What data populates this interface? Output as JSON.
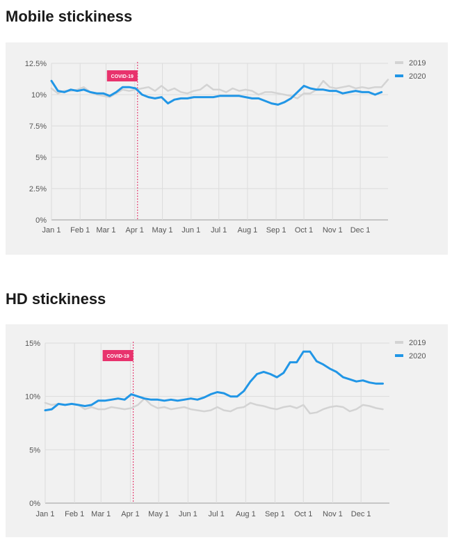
{
  "charts": [
    {
      "section_title": "Mobile stickiness",
      "chart_data": {
        "type": "line",
        "title": "Mobile stickiness",
        "x_tick_labels": [
          "Jan 1",
          "Feb 1",
          "Mar 1",
          "Apr 1",
          "May 1",
          "Jun 1",
          "Jul 1",
          "Aug 1",
          "Sep 1",
          "Oct 1",
          "Nov 1",
          "Dec 1"
        ],
        "y_tick_labels": [
          "0%",
          "2.5%",
          "5%",
          "7.5%",
          "10%",
          "12.5%"
        ],
        "y_ticks": [
          0,
          2.5,
          5,
          7.5,
          10,
          12.5
        ],
        "ylim": [
          0,
          12.5
        ],
        "xlim_weeks": [
          0,
          52
        ],
        "annotation": {
          "label": "COVID-19",
          "week": 13.3
        },
        "legend_position": "top-right",
        "series": [
          {
            "name": "2019",
            "color": "#d3d3d3",
            "values": [
              10.5,
              10.1,
              10.3,
              10.3,
              10.4,
              10.6,
              10.2,
              10.0,
              9.9,
              9.8,
              10.1,
              10.4,
              10.3,
              10.4,
              10.5,
              10.6,
              10.3,
              10.7,
              10.3,
              10.5,
              10.2,
              10.1,
              10.3,
              10.4,
              10.8,
              10.4,
              10.4,
              10.2,
              10.5,
              10.3,
              10.4,
              10.3,
              10.0,
              10.2,
              10.2,
              10.1,
              10.0,
              9.9,
              9.7,
              10.1,
              10.1,
              10.4,
              11.1,
              10.6,
              10.5,
              10.6,
              10.7,
              10.5,
              10.6,
              10.5,
              10.6,
              10.6,
              11.2
            ]
          },
          {
            "name": "2020",
            "color": "#2196e6",
            "values": [
              11.1,
              10.3,
              10.2,
              10.4,
              10.3,
              10.4,
              10.2,
              10.1,
              10.1,
              9.9,
              10.2,
              10.6,
              10.6,
              10.5,
              10.0,
              9.8,
              9.7,
              9.8,
              9.3,
              9.6,
              9.7,
              9.7,
              9.8,
              9.8,
              9.8,
              9.8,
              9.9,
              9.9,
              9.9,
              9.9,
              9.8,
              9.7,
              9.7,
              9.5,
              9.3,
              9.2,
              9.4,
              9.7,
              10.2,
              10.7,
              10.5,
              10.4,
              10.4,
              10.3,
              10.3,
              10.1,
              10.2,
              10.3,
              10.2,
              10.2,
              10.0,
              10.2
            ]
          }
        ]
      }
    },
    {
      "section_title": "HD stickiness",
      "chart_data": {
        "type": "line",
        "title": "HD stickiness",
        "x_tick_labels": [
          "Jan 1",
          "Feb 1",
          "Mar 1",
          "Apr 1",
          "May 1",
          "Jun 1",
          "Jul 1",
          "Aug 1",
          "Sep 1",
          "Oct 1",
          "Nov 1",
          "Dec 1"
        ],
        "y_tick_labels": [
          "0%",
          "5%",
          "10%",
          "15%"
        ],
        "y_ticks": [
          0,
          5,
          10,
          15
        ],
        "ylim": [
          0,
          15
        ],
        "xlim_weeks": [
          0,
          52
        ],
        "annotation": {
          "label": "COVID-19",
          "week": 13.3
        },
        "legend_position": "top-right",
        "series": [
          {
            "name": "2019",
            "color": "#d3d3d3",
            "values": [
              9.4,
              9.2,
              9.3,
              9.2,
              9.3,
              9.2,
              8.8,
              9.0,
              8.8,
              8.8,
              9.0,
              8.9,
              8.8,
              8.9,
              9.2,
              9.8,
              9.2,
              8.9,
              9.0,
              8.8,
              8.9,
              9.0,
              8.8,
              8.7,
              8.6,
              8.7,
              9.0,
              8.7,
              8.6,
              8.9,
              9.0,
              9.4,
              9.2,
              9.1,
              8.9,
              8.8,
              9.0,
              9.1,
              8.9,
              9.2,
              8.4,
              8.5,
              8.8,
              9.0,
              9.1,
              9.0,
              8.6,
              8.8,
              9.2,
              9.1,
              8.9,
              8.8
            ]
          },
          {
            "name": "2020",
            "color": "#2196e6",
            "values": [
              8.7,
              8.8,
              9.3,
              9.2,
              9.3,
              9.2,
              9.1,
              9.2,
              9.6,
              9.6,
              9.7,
              9.8,
              9.7,
              10.2,
              10.0,
              9.8,
              9.7,
              9.7,
              9.6,
              9.7,
              9.6,
              9.7,
              9.8,
              9.7,
              9.9,
              10.2,
              10.4,
              10.3,
              10.0,
              10.0,
              10.5,
              11.4,
              12.1,
              12.3,
              12.1,
              11.8,
              12.2,
              13.2,
              13.2,
              14.2,
              14.2,
              13.3,
              13.0,
              12.6,
              12.3,
              11.8,
              11.6,
              11.4,
              11.5,
              11.3,
              11.2,
              11.2
            ]
          }
        ]
      }
    }
  ]
}
